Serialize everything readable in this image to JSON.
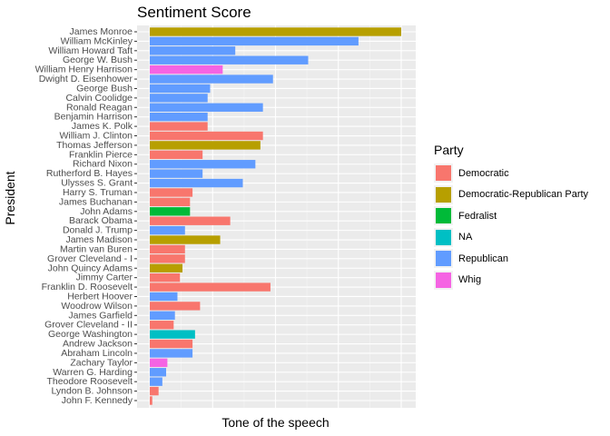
{
  "chart_data": {
    "type": "bar",
    "orientation": "horizontal",
    "title": "Sentiment Score",
    "xlabel": "Tone of the speech",
    "ylabel": "President",
    "legend_title": "Party",
    "legend_position": "right",
    "grid": true,
    "parties": [
      {
        "name": "Democratic",
        "color": "#F8766D"
      },
      {
        "name": "Democratic-Republican Party",
        "color": "#B79F00"
      },
      {
        "name": "Fedralist",
        "color": "#00BA38"
      },
      {
        "name": "NA",
        "color": "#00BFC4"
      },
      {
        "name": "Republican",
        "color": "#619CFF"
      },
      {
        "name": "Whig",
        "color": "#F564E3"
      }
    ],
    "xlim": [
      0,
      101
    ],
    "bars": [
      {
        "president": "James Monroe",
        "party": "Democratic-Republican Party",
        "value": 100
      },
      {
        "president": "William McKinley",
        "party": "Republican",
        "value": 83
      },
      {
        "president": "William Howard Taft",
        "party": "Republican",
        "value": 34
      },
      {
        "president": "George W. Bush",
        "party": "Republican",
        "value": 63
      },
      {
        "president": "William Henry Harrison",
        "party": "Whig",
        "value": 29
      },
      {
        "president": "Dwight D. Eisenhower",
        "party": "Republican",
        "value": 49
      },
      {
        "president": "George Bush",
        "party": "Republican",
        "value": 24
      },
      {
        "president": "Calvin Coolidge",
        "party": "Republican",
        "value": 23
      },
      {
        "president": "Ronald Reagan",
        "party": "Republican",
        "value": 45
      },
      {
        "president": "Benjamin Harrison",
        "party": "Republican",
        "value": 23
      },
      {
        "president": "James K. Polk",
        "party": "Democratic",
        "value": 23
      },
      {
        "president": "William J. Clinton",
        "party": "Democratic",
        "value": 45
      },
      {
        "president": "Thomas Jefferson",
        "party": "Democratic-Republican Party",
        "value": 44
      },
      {
        "president": "Franklin Pierce",
        "party": "Democratic",
        "value": 21
      },
      {
        "president": "Richard Nixon",
        "party": "Republican",
        "value": 42
      },
      {
        "president": "Rutherford B. Hayes",
        "party": "Republican",
        "value": 21
      },
      {
        "president": "Ulysses S. Grant",
        "party": "Republican",
        "value": 37
      },
      {
        "president": "Harry S. Truman",
        "party": "Democratic",
        "value": 17
      },
      {
        "president": "James Buchanan",
        "party": "Democratic",
        "value": 16
      },
      {
        "president": "John Adams",
        "party": "Fedralist",
        "value": 16
      },
      {
        "president": "Barack Obama",
        "party": "Democratic",
        "value": 32
      },
      {
        "president": "Donald J. Trump",
        "party": "Republican",
        "value": 14
      },
      {
        "president": "James Madison",
        "party": "Democratic-Republican Party",
        "value": 28
      },
      {
        "president": "Martin van Buren",
        "party": "Democratic",
        "value": 14
      },
      {
        "president": "Grover Cleveland - I",
        "party": "Democratic",
        "value": 14
      },
      {
        "president": "John Quincy Adams",
        "party": "Democratic-Republican Party",
        "value": 13
      },
      {
        "president": "Jimmy Carter",
        "party": "Democratic",
        "value": 12
      },
      {
        "president": "Franklin D. Roosevelt",
        "party": "Democratic",
        "value": 48
      },
      {
        "president": "Herbert Hoover",
        "party": "Republican",
        "value": 11
      },
      {
        "president": "Woodrow Wilson",
        "party": "Democratic",
        "value": 20
      },
      {
        "president": "James Garfield",
        "party": "Republican",
        "value": 10
      },
      {
        "president": "Grover Cleveland - II",
        "party": "Democratic",
        "value": 9.5
      },
      {
        "president": "George Washington",
        "party": "NA",
        "value": 18
      },
      {
        "president": "Andrew Jackson",
        "party": "Democratic",
        "value": 17
      },
      {
        "president": "Abraham Lincoln",
        "party": "Republican",
        "value": 17
      },
      {
        "president": "Zachary Taylor",
        "party": "Whig",
        "value": 7
      },
      {
        "president": "Warren G. Harding",
        "party": "Republican",
        "value": 6.5
      },
      {
        "president": "Theodore Roosevelt",
        "party": "Republican",
        "value": 5
      },
      {
        "president": "Lyndon B. Johnson",
        "party": "Democratic",
        "value": 3.5
      },
      {
        "president": "John F. Kennedy",
        "party": "Democratic",
        "value": 1
      }
    ]
  }
}
